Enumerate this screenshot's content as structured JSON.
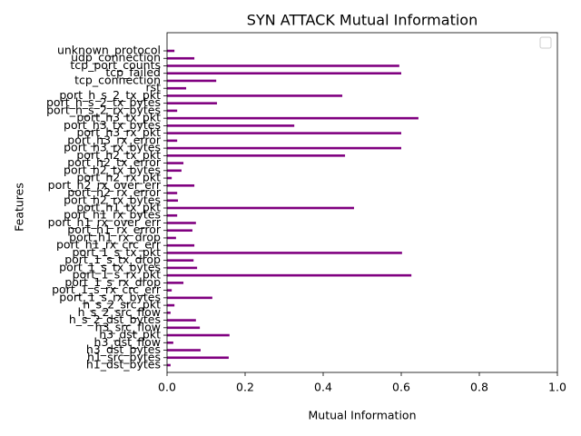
{
  "chart_data": {
    "type": "barh",
    "title": "SYN ATTACK Mutual Information",
    "xlabel": "Mutual Information",
    "ylabel": "Features",
    "color": "#800080",
    "categories": [
      "unknown_protocol",
      "udp_connection",
      "tcp_port_counts",
      "tcp_failed",
      "tcp_connection",
      "rst",
      "port_h_s_2_tx_pkt",
      "port_h_s_2_tx_bytes",
      "port_h_s_2_rx_bytes",
      "port_h3_tx_pkt",
      "port_h3_tx_bytes",
      "port_h3_rx_pkt",
      "port_h3_rx_error",
      "port_h3_rx_bytes",
      "port_h2_tx_pkt",
      "port_h2_tx_error",
      "port_h2_tx_bytes",
      "port_h2_rx_pkt",
      "port_h2_rx_over_err",
      "port_h2_rx_error",
      "port_h2_rx_bytes",
      "port_h1_tx_pkt",
      "port_h1_rx_bytes",
      "port_h1_rx_over_err",
      "port_h1_rx_error",
      "port_h1_rx_drop",
      "port_h1_rx_crc_err",
      "port_1_s_tx_pkt",
      "port_1_s_tx_drop",
      "port_1_s_tx_bytes",
      "port_1_s_rx_pkt",
      "port_1_s_rx_drop",
      "port_1_s_rx_crc_err",
      "port_1_s_rx_bytes",
      "h_s_2_src_pkt",
      "h_s_2_src_flow",
      "h_s_2_dst_bytes",
      "h3_src_flow",
      "h3_dst_pkt",
      "h3_dst_flow",
      "h3_dst_bytes",
      "h1_src_bytes",
      "h1_dst_bytes"
    ],
    "values": [
      0.019,
      0.07,
      0.595,
      0.6,
      0.126,
      0.049,
      0.449,
      0.128,
      0.026,
      0.644,
      0.326,
      0.6,
      0.026,
      0.6,
      0.456,
      0.042,
      0.037,
      0.012,
      0.07,
      0.026,
      0.028,
      0.479,
      0.026,
      0.074,
      0.065,
      0.023,
      0.07,
      0.602,
      0.068,
      0.077,
      0.626,
      0.042,
      0.012,
      0.116,
      0.019,
      0.009,
      0.074,
      0.084,
      0.16,
      0.016,
      0.086,
      0.158,
      0.009
    ],
    "xlim": [
      0,
      1
    ],
    "xticks": [
      {
        "value": 0,
        "label": "0.0"
      },
      {
        "value": 0.2,
        "label": "0.2"
      },
      {
        "value": 0.4,
        "label": "0.4"
      },
      {
        "value": 0.6,
        "label": "0.6"
      },
      {
        "value": 0.8,
        "label": "0.8"
      },
      {
        "value": 1,
        "label": "1.0"
      }
    ]
  }
}
